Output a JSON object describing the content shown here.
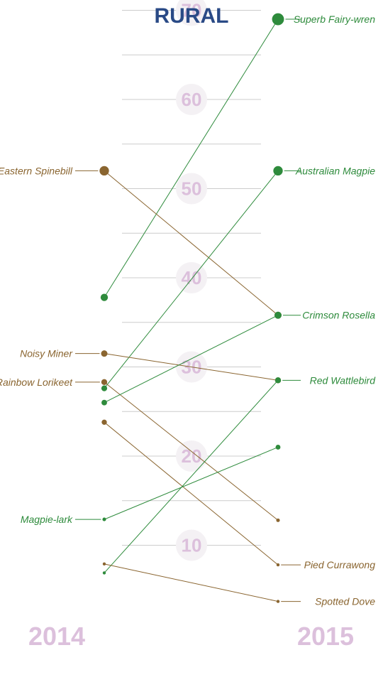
{
  "chart_data": {
    "type": "slope",
    "title": "RURAL",
    "x": [
      "2014",
      "2015"
    ],
    "yticks": [
      10,
      20,
      30,
      40,
      50,
      60,
      70
    ],
    "ylim": [
      5,
      74
    ],
    "grid": true,
    "colors": {
      "increase": "#2e8b3c",
      "decrease": "#8a6530",
      "title": "#2a4a86",
      "ticks": "#dcc0dc"
    },
    "series": [
      {
        "values": [
          37.8,
          69.0
        ],
        "color": "#2e8b3c"
      },
      {
        "values": [
          52.0,
          35.8
        ],
        "color": "#8a6530"
      },
      {
        "values": [
          27.6,
          52.0
        ],
        "color": "#2e8b3c"
      },
      {
        "name": "Noisy Miner",
        "values": [
          31.5,
          28.5
        ],
        "color": "#8a6530"
      },
      {
        "name": "Rainbow Lorikeet",
        "values": [
          28.3,
          12.8
        ],
        "color": "#8a6530"
      },
      {
        "values": [
          26.0,
          35.8
        ],
        "color": "#2e8b3c"
      },
      {
        "values": [
          23.8,
          7.8
        ],
        "color": "#8a6530"
      },
      {
        "name": "Magpie-lark",
        "values": [
          12.9,
          21.0
        ],
        "color": "#2e8b3c"
      },
      {
        "values": [
          6.9,
          28.5
        ],
        "color": "#2e8b3c"
      },
      {
        "values": [
          7.9,
          3.7
        ],
        "color": "#8a6530"
      }
    ],
    "left_labels": [
      {
        "text": "Eastern Spinebill",
        "series": 1,
        "color": "#8a6530"
      },
      {
        "text": "Noisy Miner",
        "series": 3,
        "color": "#8a6530"
      },
      {
        "text": "Rainbow Lorikeet",
        "series": 4,
        "color": "#8a6530"
      },
      {
        "text": "Magpie-lark",
        "series": 7,
        "color": "#2e8b3c"
      }
    ],
    "right_labels": [
      {
        "text": "Superb Fairy-wren",
        "series": 0,
        "color": "#2e8b3c"
      },
      {
        "text": "Australian Magpie",
        "series": 2,
        "color": "#2e8b3c"
      },
      {
        "text": "Crimson Rosella",
        "series": 5,
        "color": "#2e8b3c"
      },
      {
        "text": "Red Wattlebird",
        "series": 8,
        "color": "#2e8b3c"
      },
      {
        "text": "Pied Currawong",
        "series": 6,
        "color": "#8a6530"
      },
      {
        "text": "Spotted Dove",
        "series": 9,
        "color": "#8a6530"
      }
    ]
  }
}
